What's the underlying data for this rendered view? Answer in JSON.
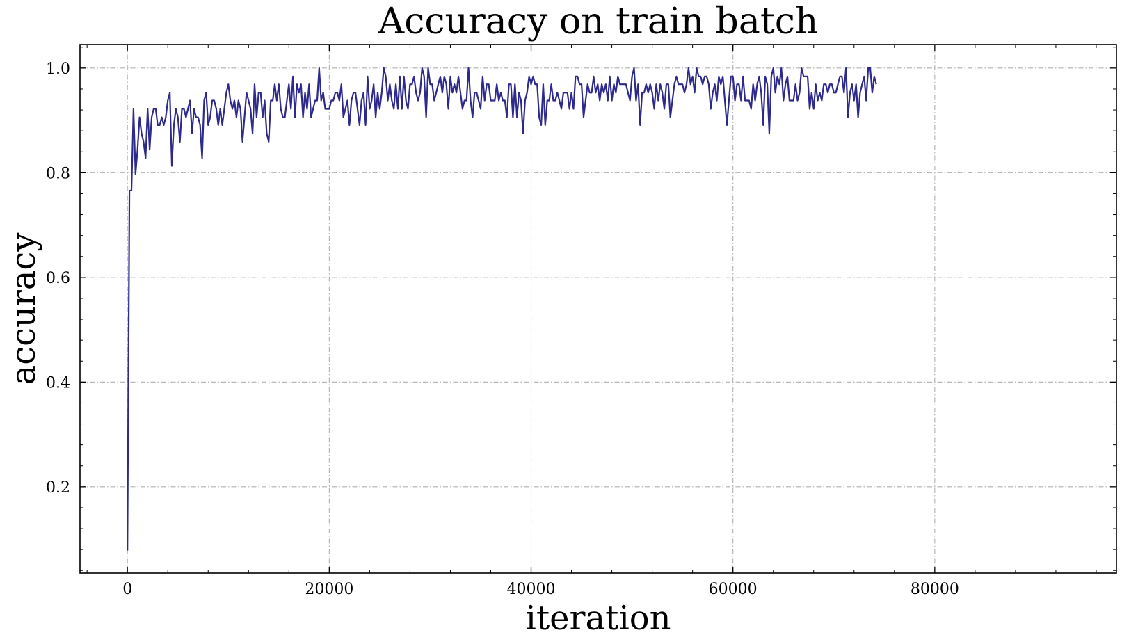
{
  "chart_data": {
    "type": "line",
    "title": "Accuracy on train batch",
    "xlabel": "iteration",
    "ylabel": "accuracy",
    "xlim": [
      -4700,
      98000
    ],
    "ylim": [
      0.035,
      1.045
    ],
    "xticks": [
      0,
      20000,
      40000,
      60000,
      80000
    ],
    "xtick_labels": [
      "0",
      "20000",
      "40000",
      "60000",
      "80000"
    ],
    "yticks": [
      0.2,
      0.4,
      0.6,
      0.8,
      1.0
    ],
    "ytick_labels": [
      "0.2",
      "0.4",
      "0.6",
      "0.8",
      "1.0"
    ],
    "grid": true,
    "legend": "none",
    "series": [
      {
        "color": "#2e2a8c",
        "x_step": 200,
        "x_start": 0,
        "values": [
          0.078,
          0.766,
          0.766,
          0.922,
          0.797,
          0.844,
          0.906,
          0.875,
          0.859,
          0.828,
          0.922,
          0.844,
          0.906,
          0.922,
          0.922,
          0.891,
          0.891,
          0.906,
          0.891,
          0.906,
          0.938,
          0.953,
          0.813,
          0.891,
          0.922,
          0.906,
          0.859,
          0.922,
          0.922,
          0.906,
          0.922,
          0.938,
          0.875,
          0.922,
          0.906,
          0.906,
          0.891,
          0.828,
          0.938,
          0.953,
          0.891,
          0.906,
          0.938,
          0.938,
          0.922,
          0.891,
          0.922,
          0.891,
          0.922,
          0.953,
          0.969,
          0.938,
          0.922,
          0.938,
          0.906,
          0.938,
          0.922,
          0.859,
          0.906,
          0.953,
          0.938,
          0.922,
          0.875,
          0.969,
          0.906,
          0.953,
          0.953,
          0.906,
          0.938,
          0.875,
          0.859,
          0.938,
          0.938,
          0.969,
          0.938,
          0.969,
          0.922,
          0.906,
          0.906,
          0.938,
          0.969,
          0.922,
          0.984,
          0.906,
          0.969,
          0.953,
          0.969,
          0.906,
          0.953,
          0.922,
          0.969,
          0.906,
          0.922,
          0.938,
          0.938,
          1.0,
          0.938,
          0.953,
          0.922,
          0.922,
          0.922,
          0.938,
          0.938,
          0.953,
          0.953,
          0.938,
          0.969,
          0.906,
          0.922,
          0.938,
          0.891,
          0.938,
          0.953,
          0.953,
          0.922,
          0.891,
          0.938,
          0.953,
          0.891,
          0.984,
          0.922,
          0.938,
          0.969,
          0.906,
          0.953,
          0.922,
          0.953,
          1.0,
          0.984,
          0.938,
          0.969,
          0.938,
          0.922,
          0.969,
          0.922,
          0.984,
          0.922,
          0.984,
          0.938,
          0.922,
          0.969,
          0.969,
          0.984,
          0.953,
          0.938,
          0.953,
          1.0,
          0.984,
          0.906,
          1.0,
          0.969,
          0.969,
          0.938,
          0.953,
          0.969,
          0.984,
          0.953,
          0.984,
          0.969,
          0.922,
          0.984,
          0.953,
          0.969,
          0.953,
          0.984,
          0.953,
          0.922,
          0.938,
          0.938,
          1.0,
          0.938,
          0.906,
          0.953,
          0.953,
          0.938,
          0.922,
          0.984,
          0.938,
          0.969,
          0.969,
          0.938,
          0.938,
          0.938,
          0.969,
          0.938,
          0.953,
          0.938,
          0.938,
          0.906,
          0.969,
          0.969,
          0.906,
          0.969,
          0.906,
          0.953,
          0.938,
          0.875,
          0.938,
          0.953,
          0.984,
          0.969,
          0.984,
          0.969,
          0.969,
          0.906,
          0.891,
          0.969,
          0.891,
          0.938,
          0.938,
          0.969,
          0.938,
          0.938,
          0.953,
          0.938,
          0.922,
          0.953,
          0.953,
          0.953,
          0.922,
          0.953,
          0.922,
          0.984,
          0.984,
          0.969,
          0.969,
          0.906,
          0.938,
          0.969,
          0.953,
          0.953,
          0.984,
          0.953,
          0.969,
          0.938,
          0.969,
          0.953,
          0.969,
          0.938,
          0.984,
          0.938,
          0.969,
          0.953,
          0.984,
          0.969,
          0.969,
          0.969,
          0.969,
          0.953,
          0.938,
          0.984,
          1.0,
          0.938,
          0.969,
          0.891,
          0.953,
          0.953,
          0.969,
          0.953,
          0.969,
          0.953,
          0.922,
          0.969,
          0.938,
          0.969,
          0.953,
          0.922,
          0.969,
          0.969,
          0.906,
          0.938,
          0.969,
          0.984,
          0.969,
          0.969,
          0.969,
          0.953,
          0.969,
          1.0,
          0.969,
          0.984,
          0.953,
          1.0,
          0.984,
          0.984,
          0.969,
          0.984,
          0.984,
          0.969,
          0.922,
          0.953,
          0.969,
          0.938,
          0.984,
          0.969,
          0.984,
          0.938,
          0.891,
          0.938,
          0.984,
          0.984,
          0.938,
          0.969,
          0.969,
          0.938,
          0.984,
          0.938,
          0.938,
          0.938,
          0.922,
          0.969,
          0.938,
          0.969,
          0.984,
          0.953,
          0.891,
          0.984,
          0.969,
          0.875,
          0.984,
          1.0,
          0.953,
          0.984,
          0.969,
          1.0,
          0.938,
          0.969,
          0.984,
          0.938,
          0.938,
          0.938,
          0.969,
          0.938,
          0.953,
          1.0,
          0.984,
          0.984,
          0.984,
          0.922,
          0.953,
          0.922,
          0.969,
          0.938,
          0.953,
          0.938,
          0.969,
          0.969,
          0.953,
          0.969,
          0.969,
          0.953,
          0.953,
          0.969,
          0.984,
          0.984,
          0.953,
          1.0,
          0.906,
          0.953,
          0.969,
          0.938,
          0.969,
          0.906,
          0.953,
          0.969,
          0.984,
          0.938,
          1.0,
          1.0,
          0.953,
          0.984,
          0.969
        ]
      }
    ]
  }
}
